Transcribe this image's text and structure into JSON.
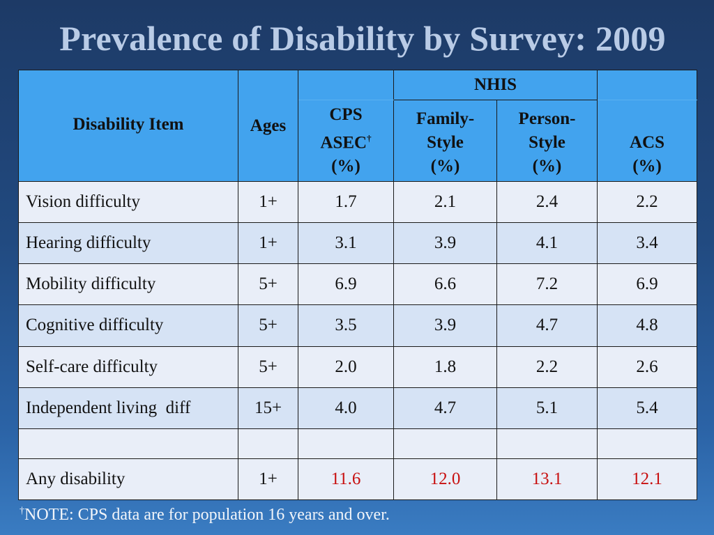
{
  "title": "Prevalence of Disability by Survey: 2009",
  "header": {
    "disability_item": "Disability Item",
    "ages": "Ages",
    "nhis": "NHIS",
    "cps_line1": "CPS",
    "cps_line2": "ASEC",
    "cps_dagger": "†",
    "cps_line3": "(%)",
    "family_line1": "Family-",
    "family_line2": "Style",
    "family_line3": "(%)",
    "person_line1": "Person-",
    "person_line2": "Style",
    "person_line3": "(%)",
    "acs_line1": "ACS",
    "acs_line2": "(%)"
  },
  "rows": [
    {
      "item": "Vision difficulty",
      "ages": "1+",
      "cps": "1.7",
      "family": "2.1",
      "person": "2.4",
      "acs": "2.2"
    },
    {
      "item": "Hearing difficulty",
      "ages": "1+",
      "cps": "3.1",
      "family": "3.9",
      "person": "4.1",
      "acs": "3.4"
    },
    {
      "item": "Mobility difficulty",
      "ages": "5+",
      "cps": "6.9",
      "family": "6.6",
      "person": "7.2",
      "acs": "6.9"
    },
    {
      "item": "Cognitive difficulty",
      "ages": "5+",
      "cps": "3.5",
      "family": "3.9",
      "person": "4.7",
      "acs": "4.8"
    },
    {
      "item": "Self-care difficulty",
      "ages": "5+",
      "cps": "2.0",
      "family": "1.8",
      "person": "2.2",
      "acs": "2.6"
    },
    {
      "item": "Independent living  diff",
      "ages": "15+",
      "cps": "4.0",
      "family": "4.7",
      "person": "5.1",
      "acs": "5.4"
    }
  ],
  "total": {
    "item": "Any disability",
    "ages": "1+",
    "cps": "11.6",
    "family": "12.0",
    "person": "13.1",
    "acs": "12.1"
  },
  "note": {
    "dagger": "†",
    "text": "NOTE: CPS data are for population 16 years and over."
  },
  "colors": {
    "header_bg": "#42a3ee",
    "total_values": "#c81010",
    "title": "#b9cbe6"
  }
}
